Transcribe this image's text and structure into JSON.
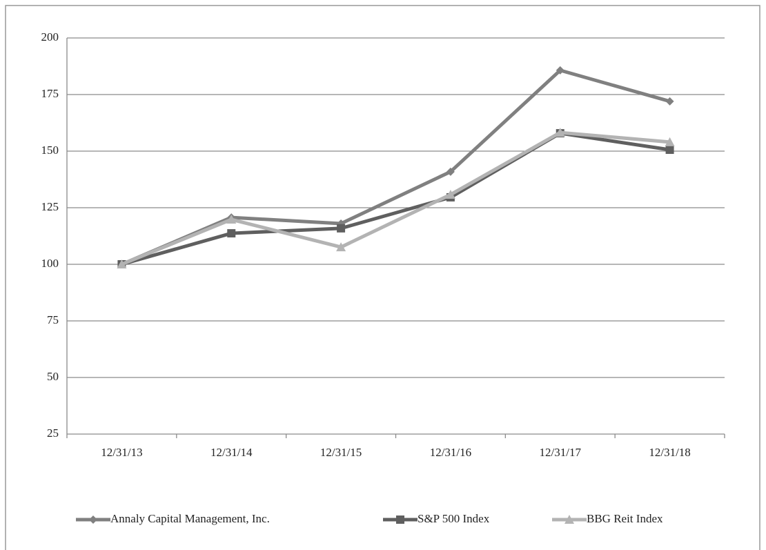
{
  "chart_data": {
    "type": "line",
    "categories": [
      "12/31/13",
      "12/31/14",
      "12/31/15",
      "12/31/16",
      "12/31/17",
      "12/31/18"
    ],
    "series": [
      {
        "name": "Annaly Capital Management, Inc.",
        "color": "#808080",
        "marker": "diamond",
        "values": [
          100,
          120.7,
          118,
          140.9,
          185.7,
          172
        ]
      },
      {
        "name": "S&P 500 Index",
        "color": "#5f5f5f",
        "marker": "square",
        "values": [
          100,
          113.7,
          115.9,
          129.6,
          157.9,
          150.6
        ]
      },
      {
        "name": "BBG Reit Index",
        "color": "#b3b3b3",
        "marker": "triangle",
        "values": [
          100,
          119.8,
          107.6,
          130.8,
          158.2,
          154
        ]
      }
    ],
    "ylim": [
      25,
      200
    ],
    "yticks": [
      25,
      50,
      75,
      100,
      125,
      150,
      175,
      200
    ],
    "grid": true,
    "legend": "bottom"
  }
}
